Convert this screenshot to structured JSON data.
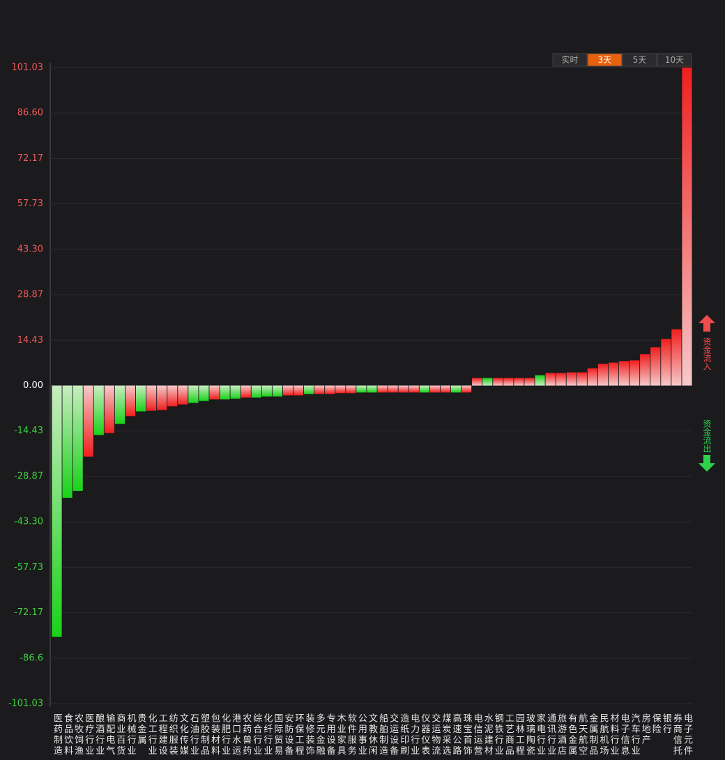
{
  "chart_data": {
    "type": "bar",
    "categories": [
      "医药制造",
      "食品饮料",
      "农牧饲渔",
      "医疗行业",
      "酿酒行业",
      "输配电气",
      "商业百货",
      "机械行业",
      "贵金属",
      "化工行业",
      "工程建设",
      "纺织服装",
      "文化传媒",
      "石油行业",
      "塑胶制品",
      "包装材料",
      "化肥行业",
      "港口水运",
      "农药兽药",
      "综合行业",
      "化纤行业",
      "国际贸易",
      "安防设备",
      "环保工程",
      "装修装饰",
      "多元金融",
      "专用设备",
      "木业家具",
      "软件服务",
      "公用事业",
      "文教休闲",
      "船舶制造",
      "交运设备",
      "造纸印刷",
      "电力行业",
      "仪器仪表",
      "交运物流",
      "煤炭采选",
      "高速公路",
      "珠宝首饰",
      "电信运营",
      "水泥建材",
      "钢铁行业",
      "工艺商品",
      "园林工程",
      "玻璃陶瓷",
      "家电行业",
      "通讯行业",
      "旅游酒店",
      "有色金属",
      "航天航空",
      "金属制品",
      "民航机场",
      "材料行业",
      "电子信息",
      "汽车行业",
      "房地产",
      "保险",
      "银行",
      "券商信托",
      "电子元件"
    ],
    "values": [
      -79.8,
      -35.7,
      -33.5,
      -22.6,
      -15.7,
      -15.1,
      -12.2,
      -9.7,
      -8.2,
      -8.0,
      -7.8,
      -6.6,
      -6.0,
      -5.5,
      -4.9,
      -4.4,
      -4.4,
      -4.2,
      -3.8,
      -3.8,
      -3.5,
      -3.5,
      -3.1,
      -3.1,
      -2.7,
      -2.7,
      -2.7,
      -2.4,
      -2.4,
      -2.2,
      -2.2,
      -2.2,
      -2.2,
      -2.2,
      -2.2,
      -2.2,
      -2.2,
      -2.2,
      -2.2,
      -2.2,
      2.4,
      2.4,
      2.4,
      2.4,
      2.4,
      2.4,
      3.3,
      4.0,
      4.0,
      4.2,
      4.2,
      5.5,
      6.9,
      7.3,
      7.8,
      8.0,
      10.0,
      12.2,
      14.8,
      17.9,
      101.03
    ],
    "colors": [
      "#19d219",
      "#19d219",
      "#19d219",
      "#f01e1e",
      "#19d219",
      "#f01e1e",
      "#19d219",
      "#f01e1e",
      "#19d219",
      "#f01e1e",
      "#f01e1e",
      "#f01e1e",
      "#f01e1e",
      "#19d219",
      "#19d219",
      "#f01e1e",
      "#19d219",
      "#19d219",
      "#f01e1e",
      "#19d219",
      "#19d219",
      "#19d219",
      "#f01e1e",
      "#f01e1e",
      "#19d219",
      "#f01e1e",
      "#f01e1e",
      "#f01e1e",
      "#f01e1e",
      "#19d219",
      "#19d219",
      "#f01e1e",
      "#f01e1e",
      "#f01e1e",
      "#f01e1e",
      "#19d219",
      "#f01e1e",
      "#f01e1e",
      "#19d219",
      "#f01e1e",
      "#f01e1e",
      "#19d219",
      "#f01e1e",
      "#f01e1e",
      "#f01e1e",
      "#f01e1e",
      "#19d219",
      "#f01e1e",
      "#f01e1e",
      "#f01e1e",
      "#f01e1e",
      "#f01e1e",
      "#f01e1e",
      "#f01e1e",
      "#f01e1e",
      "#f01e1e",
      "#f01e1e",
      "#f01e1e",
      "#f01e1e",
      "#f01e1e",
      "#f01e1e"
    ],
    "ylim": [
      -101.03,
      101.03
    ],
    "yticks": [
      {
        "value": -101.03,
        "label": "-101.03"
      },
      -86.6,
      -72.17,
      -57.73,
      {
        "value": -43.3,
        "label": "-43.30"
      },
      -28.87,
      -14.43,
      {
        "value": 0,
        "label": "0.00"
      },
      14.43,
      28.87,
      {
        "value": 43.3,
        "label": "43.30"
      },
      57.73,
      72.17,
      {
        "value": 86.6,
        "label": "86.60"
      },
      101.03
    ],
    "grid": true
  },
  "tabs": [
    "实时",
    "3天",
    "5天",
    "10天"
  ],
  "active_tab": 1,
  "flow_labels": {
    "in": "资金流入",
    "out": "资金流出"
  }
}
